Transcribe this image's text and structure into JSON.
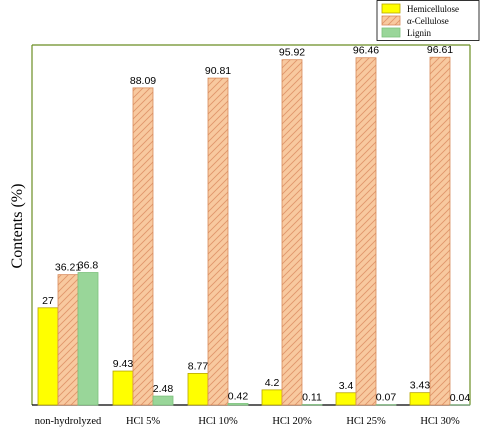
{
  "chart_data": {
    "type": "bar",
    "ylabel": "Contents (%)",
    "xlabel": "",
    "ylim": [
      0,
      100
    ],
    "grid": false,
    "legend_position": "top-right",
    "categories": [
      "non-hydrolyzed",
      "HCl 5%",
      "HCl 10%",
      "HCl 20%",
      "HCl 25%",
      "HCl 30%"
    ],
    "series": [
      {
        "name": "Hemicellulose",
        "color": "#ffff00",
        "pattern": "solid",
        "values": [
          27,
          9.43,
          8.77,
          4.2,
          3.4,
          3.43
        ],
        "labels": [
          "27",
          "9.43",
          "8.77",
          "4.2",
          "3.4",
          "3.43"
        ]
      },
      {
        "name": "α-Cellulose",
        "color": "#f8c99f",
        "pattern": "hatch",
        "values": [
          36.21,
          88.09,
          90.81,
          95.92,
          96.46,
          96.61
        ],
        "labels": [
          "36.21",
          "88.09",
          "90.81",
          "95.92",
          "96.46",
          "96.61"
        ]
      },
      {
        "name": "Lignin",
        "color": "#99d699",
        "pattern": "solid",
        "values": [
          36.8,
          2.48,
          0.42,
          0.11,
          0.07,
          0.04
        ],
        "labels": [
          "36.8",
          "2.48",
          "0.42",
          "0.11",
          "0.07",
          "0.04"
        ]
      }
    ]
  }
}
